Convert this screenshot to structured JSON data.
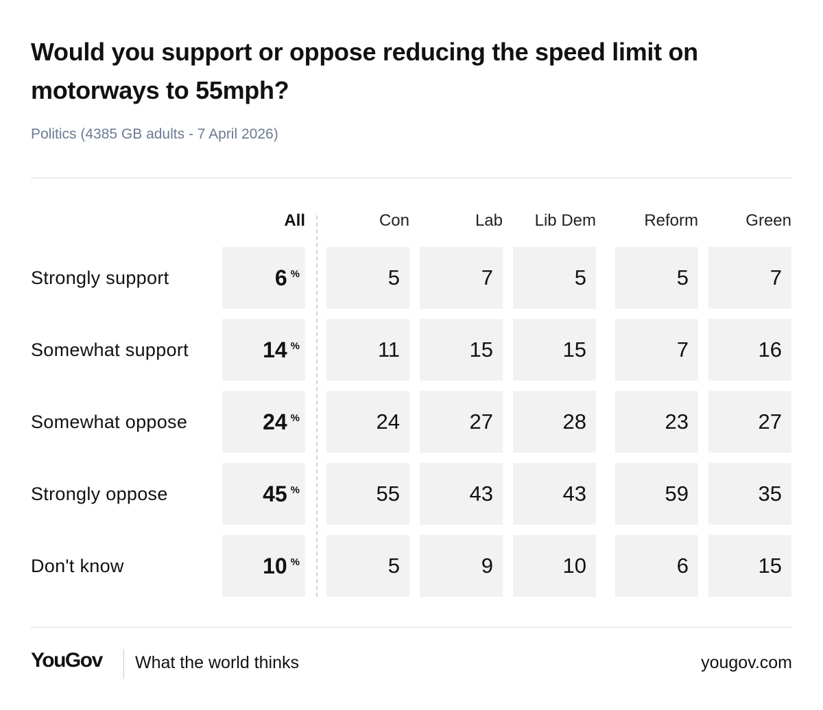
{
  "header": {
    "title": "Would you support or oppose reducing the speed limit on motorways to 55mph?",
    "subtitle": "Politics (4385 GB adults - 7 April 2026)"
  },
  "footer": {
    "logo": "YouGov",
    "tagline": "What the world thinks",
    "site": "yougov.com"
  },
  "chart_data": {
    "type": "table",
    "title": "Would you support or oppose reducing the speed limit on motorways to 55mph?",
    "subtitle": "Politics (4385 GB adults - 7 April 2026)",
    "columns": [
      "All",
      "Con",
      "Lab",
      "Lib Dem",
      "Reform",
      "Green"
    ],
    "unit": "%",
    "rows": [
      {
        "label": "Strongly support",
        "values": [
          6,
          5,
          7,
          5,
          5,
          7
        ]
      },
      {
        "label": "Somewhat support",
        "values": [
          14,
          11,
          15,
          15,
          7,
          16
        ]
      },
      {
        "label": "Somewhat oppose",
        "values": [
          24,
          24,
          27,
          28,
          23,
          27
        ]
      },
      {
        "label": "Strongly oppose",
        "values": [
          45,
          55,
          43,
          43,
          59,
          35
        ]
      },
      {
        "label": "Don't know",
        "values": [
          10,
          5,
          9,
          10,
          6,
          15
        ]
      }
    ]
  },
  "colors": {
    "cell_background": "#f2f2f3",
    "subtitle": "#6c7a93",
    "text": "#111111"
  }
}
